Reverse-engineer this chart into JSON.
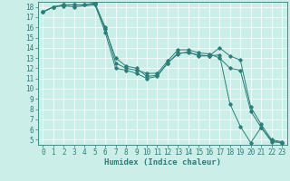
{
  "title": "",
  "xlabel": "Humidex (Indice chaleur)",
  "ylabel": "",
  "xlim": [
    -0.5,
    23.5
  ],
  "ylim": [
    4.5,
    18.5
  ],
  "bg_color": "#cceee8",
  "grid_color": "#ffffff",
  "line_color": "#2d7d78",
  "lines": [
    {
      "x": [
        0,
        1,
        2,
        3,
        4,
        5,
        6,
        7,
        8,
        9,
        10,
        11,
        12,
        13,
        14,
        15,
        16,
        17,
        18,
        19,
        20,
        21,
        22,
        23
      ],
      "y": [
        17.5,
        18.0,
        18.2,
        18.2,
        18.2,
        18.3,
        15.5,
        12.0,
        11.8,
        11.5,
        11.0,
        11.2,
        12.5,
        13.5,
        13.5,
        13.3,
        13.2,
        14.0,
        13.2,
        12.8,
        8.2,
        6.5,
        5.0,
        4.8
      ]
    },
    {
      "x": [
        0,
        1,
        2,
        3,
        4,
        5,
        6,
        7,
        8,
        9,
        10,
        11,
        12,
        13,
        14,
        15,
        16,
        17,
        18,
        19,
        20,
        21,
        22,
        23
      ],
      "y": [
        17.5,
        18.0,
        18.2,
        18.2,
        18.2,
        18.4,
        16.0,
        12.5,
        12.0,
        11.8,
        11.5,
        11.5,
        12.7,
        13.8,
        13.8,
        13.5,
        13.4,
        13.0,
        12.0,
        11.8,
        7.8,
        6.2,
        4.8,
        4.7
      ]
    },
    {
      "x": [
        0,
        1,
        2,
        3,
        5,
        6,
        7,
        8,
        9,
        10,
        11,
        12,
        13,
        14,
        15,
        16,
        17,
        18,
        19,
        20,
        21,
        22,
        23
      ],
      "y": [
        17.5,
        18.0,
        18.1,
        18.0,
        18.2,
        15.8,
        13.0,
        12.2,
        12.0,
        11.2,
        11.3,
        12.5,
        13.4,
        13.6,
        13.2,
        13.2,
        13.3,
        8.5,
        6.3,
        4.7,
        6.2,
        4.9,
        4.7
      ]
    }
  ],
  "yticks": [
    5,
    6,
    7,
    8,
    9,
    10,
    11,
    12,
    13,
    14,
    15,
    16,
    17,
    18
  ],
  "xticks": [
    0,
    1,
    2,
    3,
    4,
    5,
    6,
    7,
    8,
    9,
    10,
    11,
    12,
    13,
    14,
    15,
    16,
    17,
    18,
    19,
    20,
    21,
    22,
    23
  ],
  "font_size": 5.5,
  "marker": "D",
  "marker_size": 1.8,
  "linewidth": 0.7
}
